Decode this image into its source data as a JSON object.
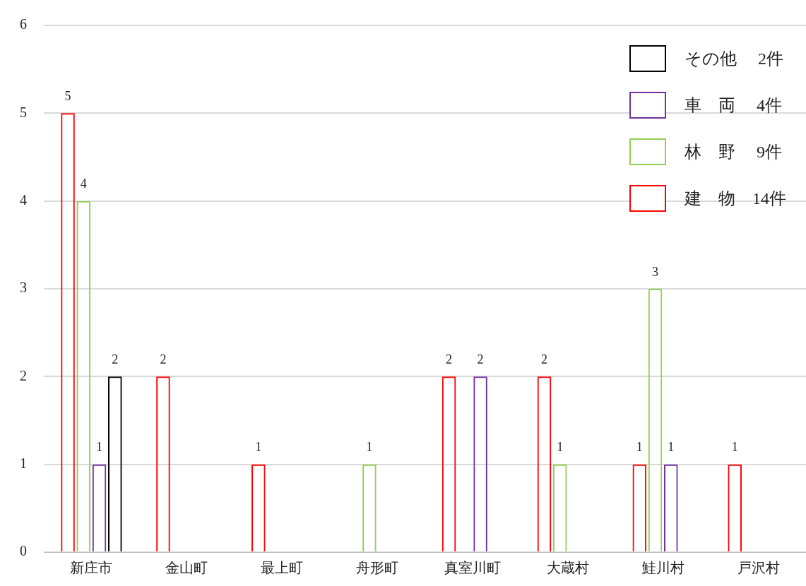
{
  "chart_data": {
    "type": "bar",
    "categories": [
      "新庄市",
      "金山町",
      "最上町",
      "舟形町",
      "真室川町",
      "大蔵村",
      "鮭川村",
      "戸沢村"
    ],
    "series": [
      {
        "name": "建　物　14件",
        "color": "#ff0000",
        "values": [
          5,
          2,
          1,
          0,
          2,
          2,
          1,
          1
        ],
        "value_labels": [
          "5",
          "2",
          "1",
          null,
          "2",
          "2",
          "1",
          "1"
        ]
      },
      {
        "name": "林　野　 9件",
        "color": "#92d050",
        "values": [
          4,
          0,
          0,
          1,
          0,
          1,
          3,
          0
        ],
        "value_labels": [
          "4",
          null,
          null,
          "1",
          null,
          "1",
          "3",
          null
        ]
      },
      {
        "name": "車　両　 4件",
        "color": "#7030a0",
        "values": [
          1,
          0,
          0,
          0,
          2,
          0,
          1,
          0
        ],
        "value_labels": [
          "1",
          null,
          null,
          null,
          "2",
          null,
          "1",
          null
        ]
      },
      {
        "name": "その他　 2件",
        "color": "#000000",
        "values": [
          2,
          0,
          0,
          0,
          0,
          0,
          0,
          0
        ],
        "value_labels": [
          "2",
          null,
          null,
          null,
          null,
          null,
          null,
          null
        ]
      }
    ],
    "ylim": [
      0,
      6
    ],
    "yticks": [
      0,
      1,
      2,
      3,
      4,
      5,
      6
    ],
    "grid": "y",
    "legend": "top right"
  }
}
